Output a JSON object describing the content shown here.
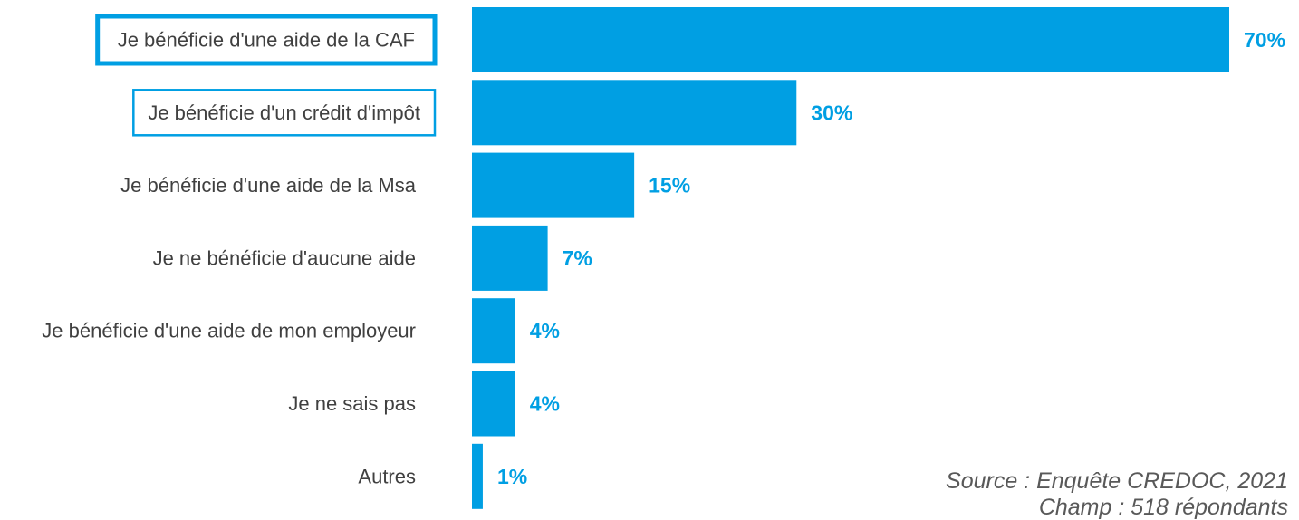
{
  "chart_data": {
    "type": "bar",
    "orientation": "horizontal",
    "categories": [
      "Je bénéficie d'une aide de la CAF",
      "Je bénéficie d'un crédit d'impôt",
      "Je bénéficie d'une aide de la Msa",
      "Je ne bénéficie d'aucune aide",
      "Je bénéficie d'une aide de mon employeur",
      "Je ne sais pas",
      "Autres"
    ],
    "values": [
      70,
      30,
      15,
      7,
      4,
      4,
      1
    ],
    "value_labels": [
      "70%",
      "30%",
      "15%",
      "7%",
      "4%",
      "4%",
      "1%"
    ],
    "highlighted_categories": [
      0,
      1
    ],
    "xlim": [
      0,
      70
    ],
    "grid": false,
    "legend": "none",
    "bar_color": "#009FE3",
    "label_color": "#009FE3",
    "highlight_box_color": "#009FE3",
    "text_color": "#404040"
  },
  "source": {
    "line1": "Source : Enquête CREDOC, 2021",
    "line2": "Champ : 518 répondants"
  }
}
